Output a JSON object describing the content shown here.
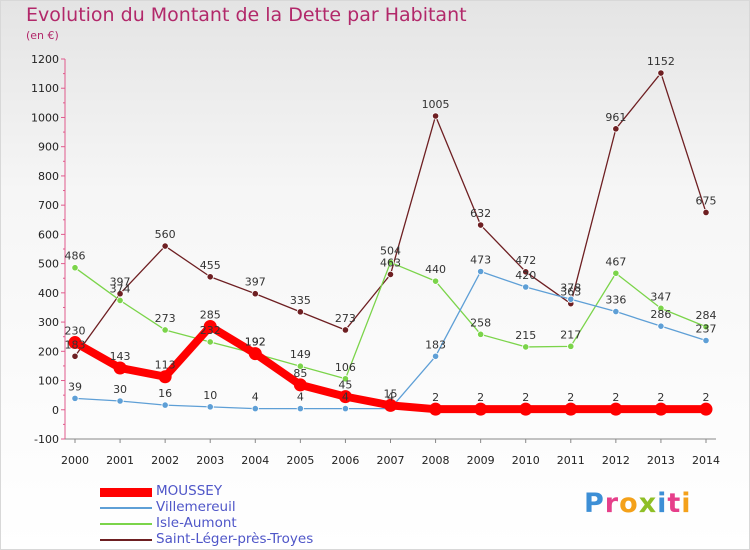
{
  "header": {
    "title": "Evolution du Montant de la Dette par Habitant",
    "unit": "(en €)"
  },
  "colors": {
    "title": "#b2286a",
    "legend_text": "#4f56c8"
  },
  "logo": {
    "text": "Proxiti",
    "letter_colors": [
      "#3d8fd6",
      "#e63f8a",
      "#f4a11a",
      "#8fbf26",
      "#3d8fd6",
      "#e63f8a",
      "#f4a11a"
    ]
  },
  "chart_data": {
    "type": "line",
    "title": "Evolution du Montant de la Dette par Habitant",
    "ylabel": "(en €)",
    "xlabel": "",
    "x": [
      "2000",
      "2001",
      "2002",
      "2003",
      "2004",
      "2005",
      "2006",
      "2007",
      "2008",
      "2009",
      "2010",
      "2011",
      "2012",
      "2013",
      "2014"
    ],
    "ylim": [
      -100,
      1200
    ],
    "yticks": [
      -100,
      0,
      100,
      200,
      300,
      400,
      500,
      600,
      700,
      800,
      900,
      1000,
      1100,
      1200
    ],
    "grid": false,
    "legend_position": "bottom-left",
    "series": [
      {
        "name": "MOUSSEY",
        "color": "#ff0000",
        "values": [
          230,
          143,
          113,
          285,
          192,
          85,
          45,
          15,
          2,
          2,
          2,
          2,
          2,
          2,
          2
        ]
      },
      {
        "name": "Villemereuil",
        "color": "#5e9fd6",
        "values": [
          39,
          30,
          16,
          10,
          4,
          4,
          4,
          4,
          183,
          473,
          420,
          378,
          336,
          286,
          237
        ]
      },
      {
        "name": "Isle-Aumont",
        "color": "#7bd44a",
        "values": [
          486,
          374,
          273,
          232,
          192,
          149,
          106,
          504,
          440,
          258,
          215,
          217,
          467,
          347,
          284
        ]
      },
      {
        "name": "Saint-Léger-près-Troyes",
        "color": "#6e1f22",
        "values": [
          183,
          397,
          560,
          455,
          397,
          335,
          273,
          463,
          1005,
          632,
          472,
          363,
          961,
          1152,
          675
        ]
      }
    ]
  }
}
